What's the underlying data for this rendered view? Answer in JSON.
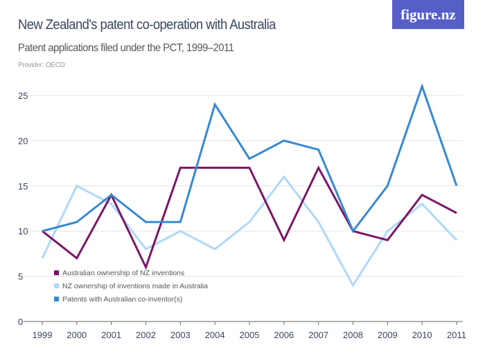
{
  "header": {
    "title": "New Zealand's patent co-operation with Australia",
    "subtitle": "Patent applications filed under the PCT, 1999–2011",
    "provider": "Provider: OECD",
    "logo": "figure.nz",
    "logo_color": "#565fc8"
  },
  "chart_data": {
    "type": "line",
    "title": "New Zealand's patent co-operation with Australia",
    "subtitle": "Patent applications filed under the PCT, 1999–2011",
    "x": [
      "1999",
      "2000",
      "2001",
      "2002",
      "2003",
      "2004",
      "2005",
      "2006",
      "2007",
      "2008",
      "2009",
      "2010",
      "2011"
    ],
    "ylim": [
      0,
      25
    ],
    "yticks": [
      0,
      5,
      10,
      15,
      20,
      25
    ],
    "grid": true,
    "legend_position": "bottom-left",
    "series": [
      {
        "name": "Australian ownership of NZ inventions",
        "color": "#7b1468",
        "values": [
          10,
          7,
          14,
          6,
          17,
          17,
          17,
          9,
          17,
          10,
          9,
          14,
          12
        ]
      },
      {
        "name": "NZ ownership of inventions made in Australia",
        "color": "#aed8fb",
        "values": [
          7,
          15,
          13,
          8,
          10,
          8,
          11,
          16,
          11,
          4,
          10,
          13,
          9
        ]
      },
      {
        "name": "Patents with Australian co-inventor(s)",
        "color": "#3588d3",
        "values": [
          10,
          11,
          14,
          11,
          11,
          24,
          18,
          20,
          19,
          10,
          15,
          26,
          15
        ]
      }
    ]
  }
}
